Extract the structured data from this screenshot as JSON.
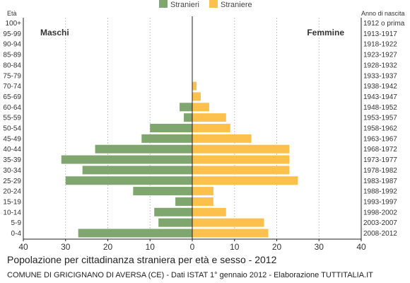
{
  "chart_data": {
    "type": "bar",
    "orientation": "horizontal-population-pyramid",
    "title": "Popolazione per cittadinanza straniera per età e sesso - 2012",
    "source": "COMUNE DI GRICIGNANO DI AVERSA (CE) - Dati ISTAT 1° gennaio 2012 - Elaborazione TUTTITALIA.IT",
    "left_axis_title": "Età",
    "right_axis_title": "Anno di nascita",
    "left_group_label": "Maschi",
    "right_group_label": "Femmine",
    "xlim": [
      -40,
      40
    ],
    "x_ticks": [
      -40,
      -30,
      -20,
      -10,
      0,
      10,
      20,
      30,
      40
    ],
    "x_tick_labels": [
      "40",
      "30",
      "20",
      "10",
      "0",
      "10",
      "20",
      "30",
      "40"
    ],
    "grid": true,
    "legend_position": "top-center",
    "categories": [
      "100+",
      "95-99",
      "90-94",
      "85-89",
      "80-84",
      "75-79",
      "70-74",
      "65-69",
      "60-64",
      "55-59",
      "50-54",
      "45-49",
      "40-44",
      "35-39",
      "30-34",
      "25-29",
      "20-24",
      "15-19",
      "10-14",
      "5-9",
      "0-4"
    ],
    "birth_years": [
      "1912 o prima",
      "1913-1917",
      "1918-1922",
      "1923-1927",
      "1928-1932",
      "1933-1937",
      "1938-1942",
      "1943-1947",
      "1948-1952",
      "1953-1957",
      "1958-1962",
      "1963-1967",
      "1968-1972",
      "1973-1977",
      "1978-1982",
      "1983-1987",
      "1988-1992",
      "1993-1997",
      "1998-2002",
      "2003-2007",
      "2008-2012"
    ],
    "series": [
      {
        "name": "Stranieri",
        "color": "#7fa66f",
        "values": [
          0,
          0,
          0,
          0,
          0,
          0,
          0,
          0,
          3,
          2,
          10,
          12,
          23,
          31,
          26,
          30,
          14,
          4,
          9,
          8,
          27
        ]
      },
      {
        "name": "Straniere",
        "color": "#fcc04c",
        "values": [
          0,
          0,
          0,
          0,
          0,
          0,
          1,
          2,
          4,
          8,
          9,
          14,
          23,
          23,
          23,
          25,
          5,
          5,
          8,
          17,
          18
        ]
      }
    ]
  }
}
